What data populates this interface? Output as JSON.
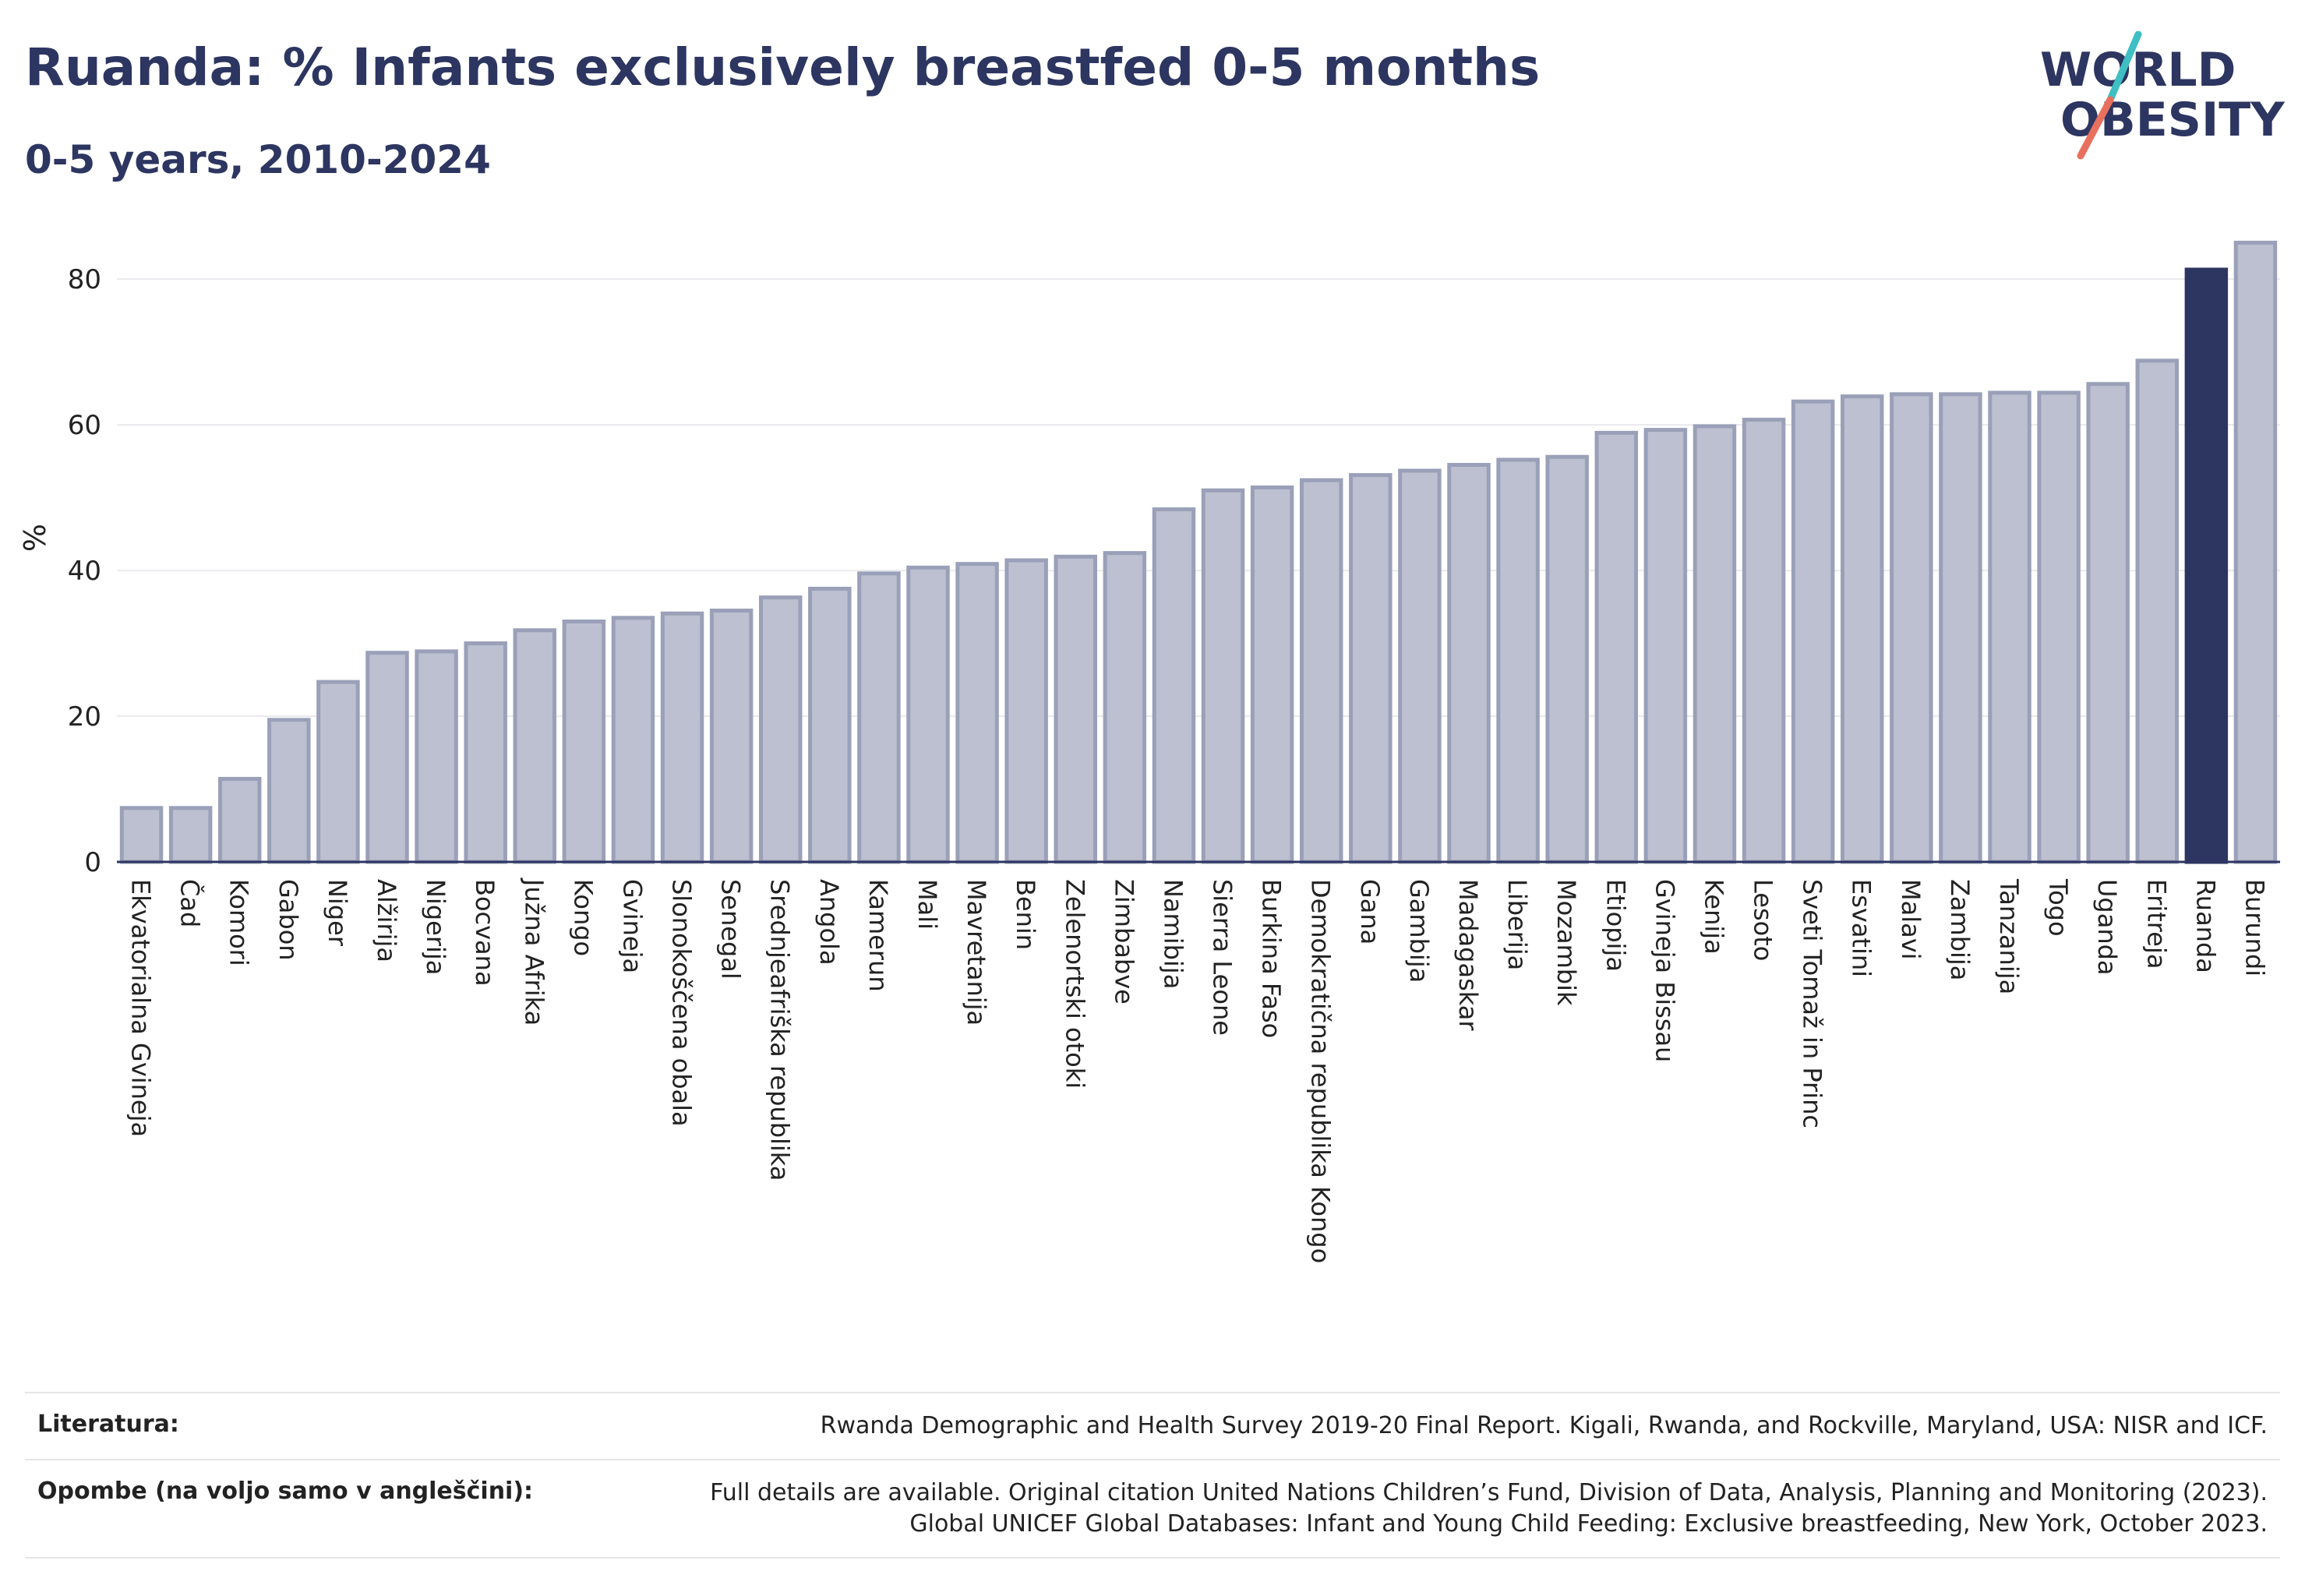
{
  "header": {
    "title": "Ruanda: % Infants exclusively breastfed 0-5 months",
    "subtitle": "0-5 years, 2010-2024"
  },
  "logo": {
    "line1": "WORLD",
    "line2": "OBESITY"
  },
  "colors": {
    "bar": "#bcc0d0",
    "bar_edge": "#9aa0b8",
    "highlight": "#2d3561",
    "axis": "#2d3561"
  },
  "chart_data": {
    "type": "bar",
    "ylabel": "%",
    "ylim": [
      0,
      89
    ],
    "yticks": [
      0,
      20,
      40,
      60,
      80
    ],
    "grid": true,
    "highlight": "Ruanda",
    "categories": [
      "Ekvatorialna Gvineja",
      "Čad",
      "Komori",
      "Gabon",
      "Niger",
      "Alžirija",
      "Nigerija",
      "Bocvana",
      "Južna Afrika",
      "Kongo",
      "Gvineja",
      "Slonokoščena obala",
      "Senegal",
      "Srednjeafriška republika",
      "Angola",
      "Kamerun",
      "Mali",
      "Mavretanija",
      "Benin",
      "Zelenortski otoki",
      "Zimbabve",
      "Namibija",
      "Sierra Leone",
      "Burkina Faso",
      "Demokratična republika Kongo",
      "Gana",
      "Gambija",
      "Madagaskar",
      "Liberija",
      "Mozambik",
      "Etiopija",
      "Gvineja Bissau",
      "Kenija",
      "Lesoto",
      "Sveti Tomaž in Princ",
      "Esvatini",
      "Malavi",
      "Zambija",
      "Tanzanija",
      "Togo",
      "Uganda",
      "Eritreja",
      "Ruanda",
      "Burundi"
    ],
    "values": [
      7.4,
      7.4,
      11.4,
      19.5,
      24.7,
      28.7,
      28.9,
      30.0,
      31.8,
      33.0,
      33.5,
      34.1,
      34.5,
      36.3,
      37.5,
      39.6,
      40.4,
      40.9,
      41.4,
      41.9,
      42.4,
      48.4,
      51.0,
      51.4,
      52.4,
      53.1,
      53.7,
      54.5,
      55.2,
      55.6,
      58.9,
      59.3,
      59.8,
      60.7,
      63.2,
      63.9,
      64.2,
      64.2,
      64.4,
      64.4,
      65.6,
      68.8,
      81.3,
      85.0
    ]
  },
  "footer": {
    "rows": [
      {
        "label": "Literatura:",
        "text": [
          "Rwanda Demographic and Health Survey 2019-20 Final Report. Kigali, Rwanda, and Rockville, Maryland, USA: NISR and ICF."
        ]
      },
      {
        "label": "Opombe (na voljo samo v angleščini):",
        "text": [
          "Full details are available. Original citation United Nations Children’s Fund, Division of Data, Analysis, Planning and Monitoring (2023).",
          "Global UNICEF Global Databases: Infant and Young Child Feeding: Exclusive breastfeeding, New York, October 2023."
        ]
      }
    ]
  }
}
